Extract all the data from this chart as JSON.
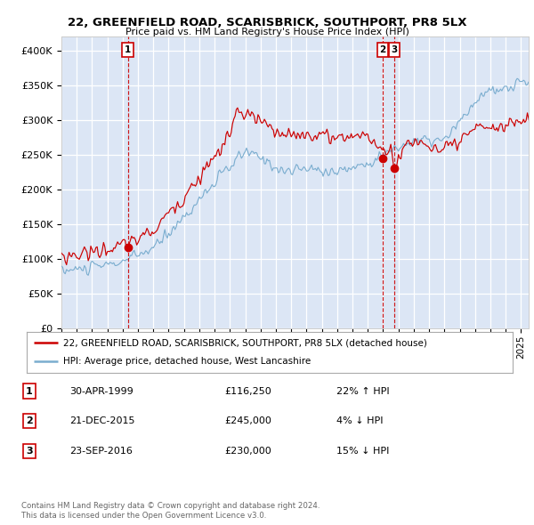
{
  "title": "22, GREENFIELD ROAD, SCARISBRICK, SOUTHPORT, PR8 5LX",
  "subtitle": "Price paid vs. HM Land Registry's House Price Index (HPI)",
  "ylim": [
    0,
    420000
  ],
  "yticks": [
    0,
    50000,
    100000,
    150000,
    200000,
    250000,
    300000,
    350000,
    400000
  ],
  "ytick_labels": [
    "£0",
    "£50K",
    "£100K",
    "£150K",
    "£200K",
    "£250K",
    "£300K",
    "£350K",
    "£400K"
  ],
  "xlim_start": 1995.0,
  "xlim_end": 2025.5,
  "plot_bg_color": "#dce6f5",
  "red_line_color": "#cc0000",
  "blue_line_color": "#7aadcf",
  "dashed_line_color": "#cc0000",
  "transaction_label_border": "#cc0000",
  "sales": [
    {
      "date_year": 1999.33,
      "price": 116250,
      "label": "1"
    },
    {
      "date_year": 2015.97,
      "price": 245000,
      "label": "2"
    },
    {
      "date_year": 2016.73,
      "price": 230000,
      "label": "3"
    }
  ],
  "legend_line1": "22, GREENFIELD ROAD, SCARISBRICK, SOUTHPORT, PR8 5LX (detached house)",
  "legend_line2": "HPI: Average price, detached house, West Lancashire",
  "table_rows": [
    {
      "num": "1",
      "date": "30-APR-1999",
      "price": "£116,250",
      "pct": "22%",
      "dir": "↑",
      "ref": "HPI"
    },
    {
      "num": "2",
      "date": "21-DEC-2015",
      "price": "£245,000",
      "pct": "4%",
      "dir": "↓",
      "ref": "HPI"
    },
    {
      "num": "3",
      "date": "23-SEP-2016",
      "price": "£230,000",
      "pct": "15%",
      "dir": "↓",
      "ref": "HPI"
    }
  ],
  "footnote1": "Contains HM Land Registry data © Crown copyright and database right 2024.",
  "footnote2": "This data is licensed under the Open Government Licence v3.0."
}
